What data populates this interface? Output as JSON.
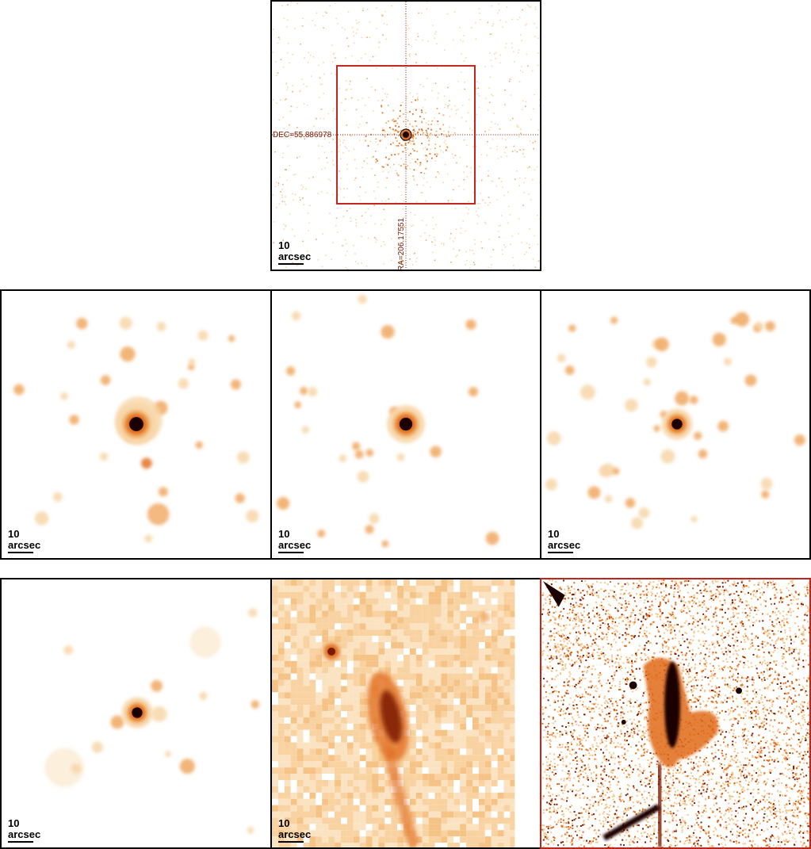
{
  "scale_label": "10 arcsec",
  "top_panel": {
    "dec_label": "DEC=55.886978",
    "ra_label": "RA=206.17551"
  },
  "colors": {
    "faint": "#f7d6a8",
    "mid": "#f0a860",
    "strong": "#e06a1a",
    "dark": "#7a1a00",
    "core": "#1a0000",
    "box": "#c0241a",
    "frame": "#000000"
  }
}
